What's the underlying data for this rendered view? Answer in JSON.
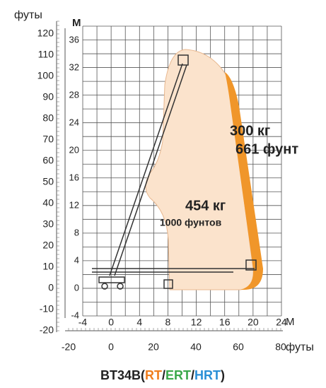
{
  "axes": {
    "left_unit": "футы",
    "top_unit": "М",
    "bottom_m_unit": "М",
    "bottom_ft_unit": "футы",
    "feet_y": [
      "120",
      "110",
      "100",
      "90",
      "80",
      "70",
      "60",
      "50",
      "40",
      "30",
      "20",
      "10",
      "0",
      "-10",
      "-20"
    ],
    "meters_y": [
      "36",
      "32",
      "28",
      "24",
      "20",
      "16",
      "12",
      "8",
      "4",
      "0",
      "-4"
    ],
    "meters_x": [
      "-4",
      "0",
      "4",
      "8",
      "12",
      "16",
      "20",
      "24"
    ],
    "feet_x": [
      "-20",
      "0",
      "20",
      "40",
      "60",
      "80"
    ]
  },
  "labels": {
    "capacity_high_kg": "300 кг",
    "capacity_high_lb": "661 фунт",
    "capacity_low_kg": "454 кг",
    "capacity_low_lb": "1000 фунтов"
  },
  "title": {
    "model": "BT34B",
    "open": "(",
    "rt": "RT",
    "sep1": "/",
    "ert": "ERT",
    "sep2": "/",
    "hrt": "HRT",
    "close": ")"
  }
}
